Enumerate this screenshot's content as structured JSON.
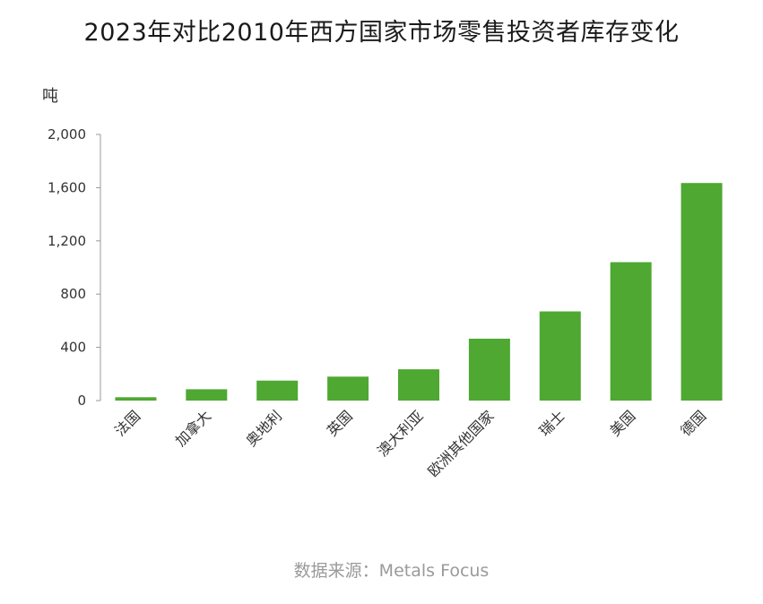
{
  "title": "2023年对比2010年西方国家市场零售投资者库存变化",
  "source": "数据来源：Metals Focus",
  "chart_data": {
    "type": "bar",
    "title": "2023年对比2010年西方国家市场零售投资者库存变化",
    "ylabel": "吨",
    "xlabel": "",
    "categories": [
      "法国",
      "加拿大",
      "奥地利",
      "英国",
      "澳大利亚",
      "欧洲其他国家",
      "瑞士",
      "美国",
      "德国"
    ],
    "values": [
      25,
      85,
      150,
      180,
      235,
      465,
      670,
      1040,
      1635
    ],
    "ylim": [
      0,
      2000
    ],
    "yticks": [
      0,
      400,
      800,
      1200,
      1600,
      2000
    ],
    "ytick_labels": [
      "0",
      "400",
      "800",
      "1,200",
      "1,600",
      "2,000"
    ],
    "bar_color": "#4ea832",
    "grid": false,
    "legend": "none"
  }
}
